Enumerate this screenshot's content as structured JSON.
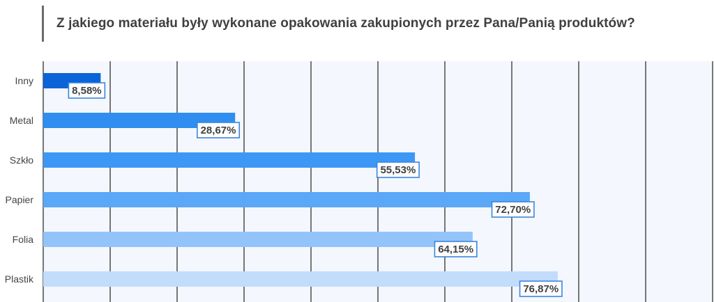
{
  "title": "Z jakiego materiału były wykonane opakowania zakupionych przez Pana/Panią produktów?",
  "colors": {
    "background_panel": "#f4f7fd",
    "gridline": "#555555",
    "label_border": "#3a86e0",
    "label_text": "#404040",
    "category_text": "#444444"
  },
  "chart_data": {
    "type": "bar",
    "orientation": "horizontal",
    "categories": [
      "Inny",
      "Metal",
      "Szkło",
      "Papier",
      "Folia",
      "Plastik"
    ],
    "values": [
      8.58,
      28.67,
      55.53,
      72.7,
      64.15,
      76.87
    ],
    "value_labels": [
      "8,58%",
      "28,67%",
      "55,53%",
      "72,70%",
      "64,15%",
      "76,87%"
    ],
    "bar_colors": [
      "#0a64d8",
      "#2f8ef0",
      "#3d97f5",
      "#5aa8f7",
      "#92c4fa",
      "#c2dcfb"
    ],
    "xlim": [
      0,
      100
    ],
    "grid": true,
    "legend": false
  }
}
